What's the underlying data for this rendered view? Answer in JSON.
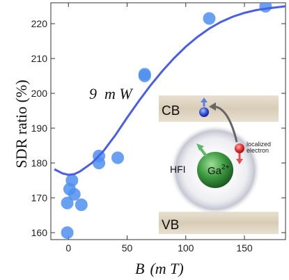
{
  "chart_data": {
    "type": "scatter",
    "xlabel_symbol": "B",
    "xlabel_unit": "(m T)",
    "ylabel": "SDR ratio (%)",
    "xlim": [
      -15,
      185
    ],
    "ylim": [
      158,
      226
    ],
    "x_ticks": [
      0,
      50,
      100,
      150
    ],
    "y_ticks": [
      160,
      170,
      180,
      190,
      200,
      210,
      220
    ],
    "points": [
      {
        "x": -1,
        "y": 160
      },
      {
        "x": -1,
        "y": 168.5
      },
      {
        "x": 1,
        "y": 172.5
      },
      {
        "x": 3,
        "y": 175
      },
      {
        "x": 5,
        "y": 171
      },
      {
        "x": 11,
        "y": 168
      },
      {
        "x": 26,
        "y": 180
      },
      {
        "x": 26,
        "y": 182
      },
      {
        "x": 42,
        "y": 181.5
      },
      {
        "x": 65,
        "y": 205
      },
      {
        "x": 65,
        "y": 205.5
      },
      {
        "x": 120,
        "y": 221.5
      },
      {
        "x": 168,
        "y": 225
      }
    ],
    "fit_curve": {
      "x": [
        -12,
        -5,
        0,
        5,
        10,
        20,
        30,
        40,
        50,
        60,
        70,
        80,
        90,
        100,
        110,
        120,
        130,
        140,
        150,
        160,
        170,
        180,
        185
      ],
      "y": [
        178.2,
        177,
        176.6,
        176.8,
        177.6,
        180,
        183.5,
        188,
        193,
        197.8,
        202.3,
        206.4,
        210.1,
        213.4,
        216.2,
        218.6,
        220.5,
        222,
        223.1,
        223.9,
        224.4,
        224.8,
        225
      ]
    },
    "annotation": "9  m W",
    "colors": {
      "points": "#4f8ff0",
      "curve": "#4a5ee8"
    }
  },
  "inset": {
    "cb_label": "CB",
    "vb_label": "VB",
    "hfi_label": "HFI",
    "ion_label": "Ga",
    "ion_charge": "2+",
    "localized_label_1": "localized",
    "localized_label_2": "electron"
  }
}
